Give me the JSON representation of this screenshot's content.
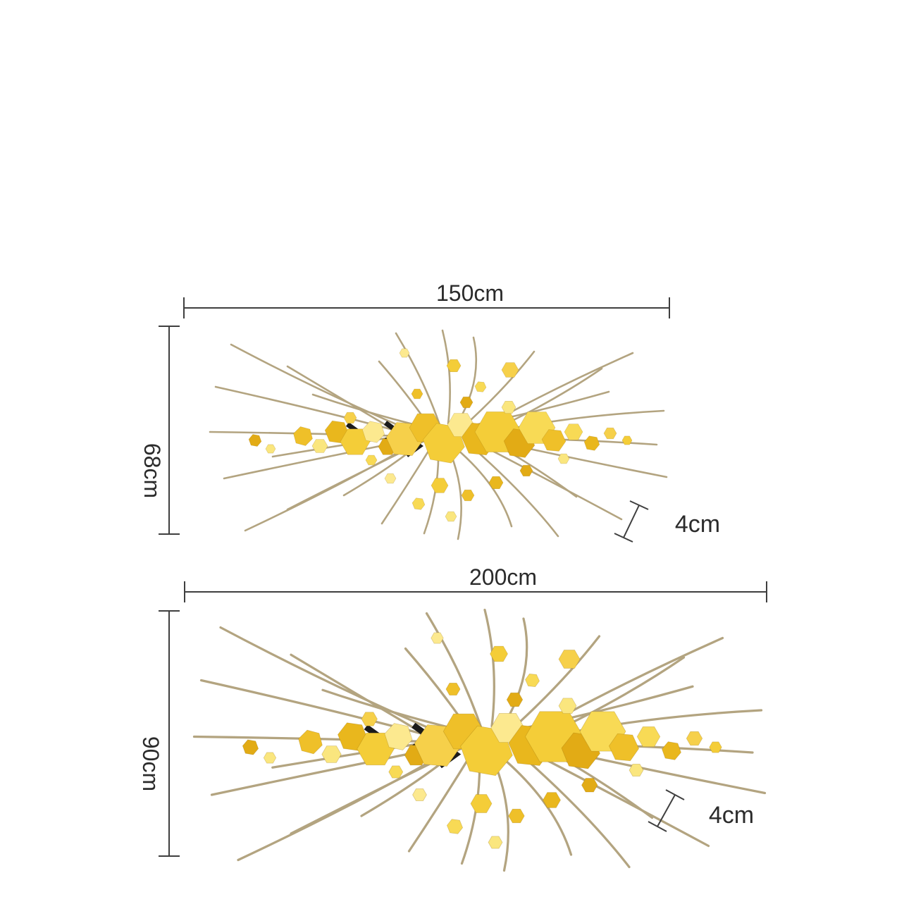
{
  "diagrams": [
    {
      "name": "size-150",
      "width_label": "150cm",
      "height_label": "68cm",
      "depth_label": "4cm"
    },
    {
      "name": "size-200",
      "width_label": "200cm",
      "height_label": "90cm",
      "depth_label": "4cm"
    }
  ],
  "colors": {
    "dimension_line": "#3f3f3f",
    "label_text": "#2b2b2b",
    "stem": "#b3a480",
    "chevron": "#1b1b1b",
    "gold_palette": [
      "#f6d04a",
      "#efc029",
      "#fae67e",
      "#e9b71d",
      "#f4cd38",
      "#fce98f",
      "#e2ab15",
      "#f8da55"
    ]
  }
}
